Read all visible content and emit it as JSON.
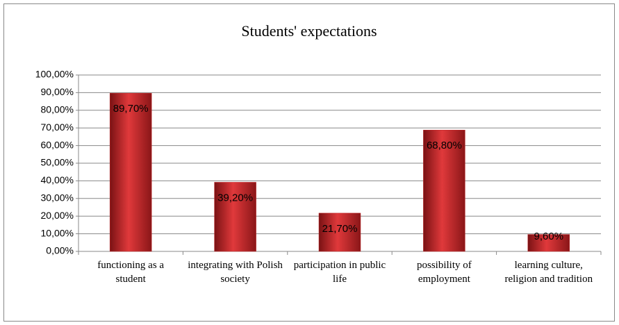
{
  "chart_data": {
    "type": "bar",
    "title": "Students' expectations",
    "categories": [
      "functioning as a student",
      "integrating with Polish society",
      "participation in public life",
      "possibility of employment",
      "learning culture, religion and tradition"
    ],
    "values": [
      89.7,
      39.2,
      21.7,
      68.8,
      9.6
    ],
    "value_labels": [
      "89,70%",
      "39,20%",
      "21,70%",
      "68,80%",
      "9,60%"
    ],
    "color": "#c0282a",
    "ylim": [
      0,
      100
    ],
    "yticks": [
      {
        "value": 0,
        "label": "0,00%"
      },
      {
        "value": 10,
        "label": "10,00%"
      },
      {
        "value": 20,
        "label": "20,00%"
      },
      {
        "value": 30,
        "label": "30,00%"
      },
      {
        "value": 40,
        "label": "40,00%"
      },
      {
        "value": 50,
        "label": "50,00%"
      },
      {
        "value": 60,
        "label": "60,00%"
      },
      {
        "value": 70,
        "label": "70,00%"
      },
      {
        "value": 80,
        "label": "80,00%"
      },
      {
        "value": 90,
        "label": "90,00%"
      },
      {
        "value": 100,
        "label": "100,00%"
      }
    ],
    "grid": true
  }
}
